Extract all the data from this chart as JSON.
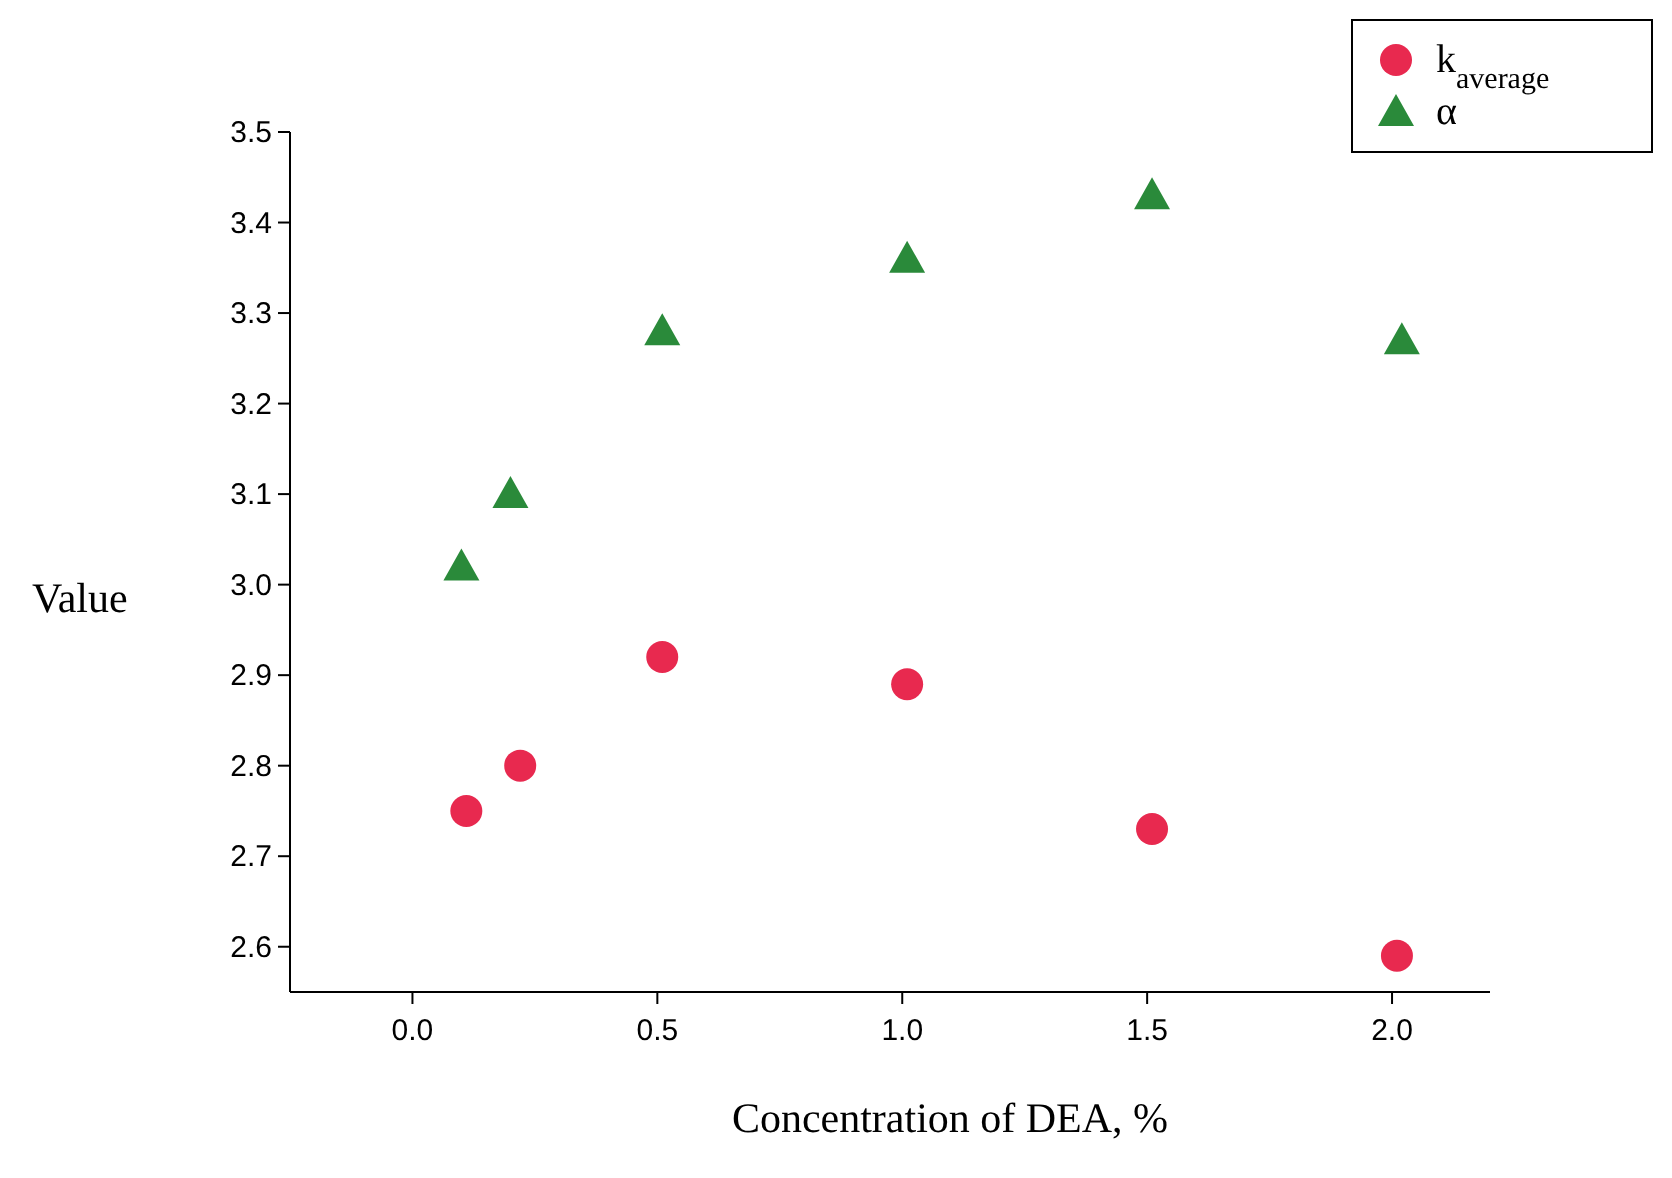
{
  "chart_data": {
    "type": "scatter",
    "xlabel": "Concentration of DEA, %",
    "ylabel": "Value",
    "x": [
      0.11,
      0.22,
      0.51,
      1.01,
      1.51,
      2.01
    ],
    "series": [
      {
        "name": "k$_{average}$",
        "color": "#e8294f",
        "marker": "circle",
        "values": [
          2.75,
          2.8,
          2.92,
          2.89,
          2.73,
          2.59
        ]
      },
      {
        "name": "α",
        "color": "#2a8a3a",
        "marker": "triangle",
        "x": [
          0.1,
          0.2,
          0.51,
          1.01,
          1.51,
          2.02
        ],
        "values": [
          3.02,
          3.1,
          3.28,
          3.36,
          3.43,
          3.27
        ]
      }
    ],
    "xlim": [
      -0.25,
      2.2
    ],
    "ylim": [
      2.55,
      3.5
    ],
    "xticks": [
      {
        "value": 0,
        "label": "0.0"
      },
      {
        "value": 0.5,
        "label": "0.5"
      },
      {
        "value": 1,
        "label": "1.0"
      },
      {
        "value": 1.5,
        "label": "1.5"
      },
      {
        "value": 2,
        "label": "2.0"
      }
    ],
    "yticks": [
      {
        "value": 2.6,
        "label": "2.6"
      },
      {
        "value": 2.7,
        "label": "2.7"
      },
      {
        "value": 2.8,
        "label": "2.8"
      },
      {
        "value": 2.9,
        "label": "2.9"
      },
      {
        "value": 3,
        "label": "3.0"
      },
      {
        "value": 3.1,
        "label": "3.1"
      },
      {
        "value": 3.2,
        "label": "3.2"
      },
      {
        "value": 3.3,
        "label": "3.3"
      },
      {
        "value": 3.4,
        "label": "3.4"
      },
      {
        "value": 3.5,
        "label": "3.5"
      }
    ],
    "grid": false,
    "legend": "top right"
  }
}
